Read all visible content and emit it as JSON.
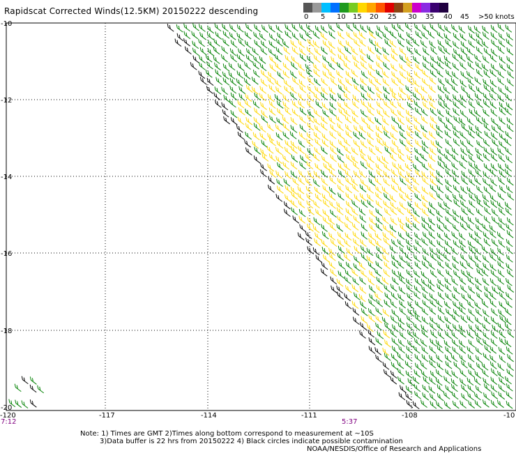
{
  "title": "Rapidscat Corrected Winds(12.5KM) 20150222 descending",
  "legend": {
    "labels": [
      "0",
      "5",
      "10",
      "15",
      "20",
      "25",
      "30",
      "35",
      "40",
      "45",
      ">50 knots"
    ],
    "colors": [
      "#555555",
      "#999999",
      "#00bfff",
      "#0070ff",
      "#1e9a1e",
      "#77cc22",
      "#ffd700",
      "#ffa500",
      "#ff5500",
      "#e00000",
      "#8b4513",
      "#d4a020",
      "#cc00cc",
      "#8a2be2",
      "#3a0070",
      "#200040"
    ]
  },
  "map": {
    "lat_labels": [
      "-10",
      "-12",
      "-14",
      "-16",
      "-18",
      "-20"
    ],
    "lon_labels": [
      "-120",
      "-117",
      "-114",
      "-111",
      "-108",
      "-10"
    ],
    "time_labels": [
      "7:12",
      "5:37"
    ],
    "barb_colors": {
      "low": "#000000",
      "moderate": "#008000",
      "fresh": "#ffd700"
    }
  },
  "notes": {
    "line1": "Note: 1) Times are GMT 2)Times along bottom correspond to measurement at ~10S",
    "line2": "3)Data buffer is 22 hrs from 20150222 4) Black circles indicate possible contamination",
    "credit": "NOAA/NESDIS/Office of Research and Applications"
  }
}
